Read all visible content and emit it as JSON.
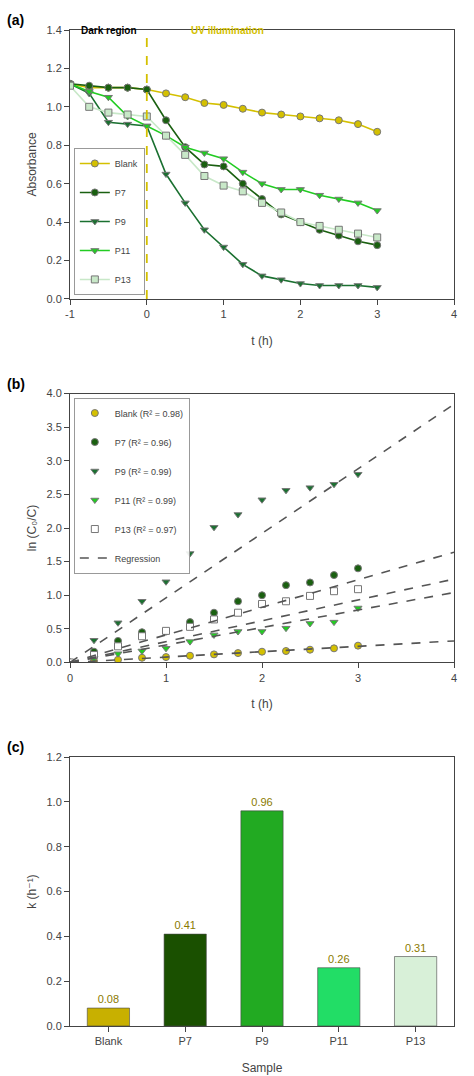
{
  "chart_data": [
    {
      "type": "line",
      "panel_label": "(a)",
      "x_label": "t (h)",
      "y_label": "Absorbance",
      "xlim": [
        -1,
        4
      ],
      "xticks": [
        -1,
        0,
        1,
        2,
        3,
        4
      ],
      "ylim": [
        0.0,
        1.4
      ],
      "yticks": [
        {
          "value": 0.0,
          "label": "0.0"
        },
        0.2,
        0.4,
        0.6,
        0.8,
        {
          "value": 1.0,
          "label": "1.0"
        },
        1.2,
        1.4
      ],
      "grid": false,
      "legend": "lower left",
      "x": [
        -1,
        -0.75,
        -0.5,
        -0.25,
        0,
        0.25,
        0.5,
        0.75,
        1.0,
        1.25,
        1.5,
        1.75,
        2.0,
        2.25,
        2.5,
        2.75,
        3.0
      ],
      "series": [
        {
          "name": "Blank",
          "color": "#d4c000",
          "marker": "circle",
          "line_style": "solid",
          "values": [
            1.12,
            1.1,
            1.1,
            1.1,
            1.09,
            1.07,
            1.05,
            1.02,
            1.01,
            0.99,
            0.97,
            0.96,
            0.95,
            0.94,
            0.93,
            0.91,
            0.87
          ]
        },
        {
          "name": "P7",
          "color": "#1a6010",
          "marker": "circle",
          "line_style": "solid",
          "values": [
            1.12,
            1.11,
            1.1,
            1.1,
            1.09,
            0.93,
            0.79,
            0.7,
            0.69,
            0.6,
            0.52,
            0.44,
            0.4,
            0.36,
            0.33,
            0.3,
            0.28
          ]
        },
        {
          "name": "P9",
          "color": "#1a7030",
          "marker": "triangle-down",
          "line_style": "solid",
          "values": [
            1.12,
            1.07,
            0.92,
            0.91,
            0.9,
            0.65,
            0.5,
            0.36,
            0.27,
            0.18,
            0.12,
            0.1,
            0.08,
            0.07,
            0.07,
            0.07,
            0.06
          ]
        },
        {
          "name": "P11",
          "color": "#22cc22",
          "marker": "triangle-down",
          "line_style": "solid",
          "values": [
            1.12,
            1.08,
            1.05,
            0.95,
            0.9,
            0.85,
            0.79,
            0.76,
            0.73,
            0.66,
            0.6,
            0.57,
            0.57,
            0.54,
            0.52,
            0.5,
            0.46
          ]
        },
        {
          "name": "P13",
          "color": "#c8e8c8",
          "marker": "square",
          "line_style": "solid",
          "values": [
            1.11,
            1.0,
            0.97,
            0.96,
            0.95,
            0.85,
            0.75,
            0.64,
            0.59,
            0.56,
            0.5,
            0.45,
            0.4,
            0.38,
            0.36,
            0.34,
            0.32
          ]
        }
      ],
      "reference_lines": [
        {
          "x": 0,
          "color": "#d4c000",
          "line_style": "dashed"
        }
      ],
      "annotations": [
        {
          "text": "Dark region",
          "x": -0.88,
          "y": 1.36,
          "color": "#000000"
        },
        {
          "text": "UV illumination",
          "x": 0.55,
          "y": 1.36,
          "color": "#d4c000"
        }
      ]
    },
    {
      "type": "scatter",
      "panel_label": "(b)",
      "x_label": "t (h)",
      "y_label": "ln (C₀/C)",
      "xlim": [
        0,
        4
      ],
      "xticks": [
        0,
        1,
        2,
        3,
        4
      ],
      "ylim": [
        0.0,
        4.0
      ],
      "yticks": [
        {
          "value": 0.0,
          "label": "0.0"
        },
        0.5,
        {
          "value": 1.0,
          "label": "1.0"
        },
        1.5,
        {
          "value": 2.0,
          "label": "2.0"
        },
        2.5,
        {
          "value": 3.0,
          "label": "3.0"
        },
        3.5,
        {
          "value": 4.0,
          "label": "4.0"
        }
      ],
      "grid": false,
      "legend": "upper left",
      "series": [
        {
          "name": "Blank (R² = 0.98)",
          "type": "scatter",
          "color": "#d4c000",
          "marker": "circle",
          "x": [
            0,
            0.25,
            0.5,
            0.75,
            1.0,
            1.25,
            1.5,
            1.75,
            2.0,
            2.25,
            2.5,
            2.75,
            3.0
          ],
          "values": [
            0.0,
            0.02,
            0.04,
            0.07,
            0.08,
            0.1,
            0.12,
            0.14,
            0.16,
            0.17,
            0.19,
            0.21,
            0.25
          ]
        },
        {
          "name": "P7 (R² = 0.96)",
          "type": "scatter",
          "color": "#1a6010",
          "marker": "circle",
          "x": [
            0,
            0.25,
            0.5,
            0.75,
            1.0,
            1.25,
            1.5,
            1.75,
            2.0,
            2.25,
            2.5,
            2.75,
            3.0
          ],
          "values": [
            0.0,
            0.16,
            0.32,
            0.45,
            0.46,
            0.6,
            0.74,
            0.91,
            1.0,
            1.15,
            1.19,
            1.3,
            1.4
          ]
        },
        {
          "name": "P9 (R² = 0.99)",
          "type": "scatter",
          "color": "#1a7030",
          "marker": "triangle-down",
          "x": [
            0,
            0.25,
            0.5,
            0.75,
            1.0,
            1.25,
            1.5,
            1.75,
            2.0,
            2.25,
            2.5,
            2.75,
            3.0
          ],
          "values": [
            0.0,
            0.33,
            0.59,
            0.91,
            1.2,
            1.62,
            2.01,
            2.2,
            2.42,
            2.56,
            2.6,
            2.65,
            2.8
          ]
        },
        {
          "name": "P11 (R² = 0.99)",
          "type": "scatter",
          "color": "#22cc22",
          "marker": "triangle-down",
          "x": [
            0,
            0.25,
            0.5,
            0.75,
            1.0,
            1.25,
            1.5,
            1.75,
            2.0,
            2.25,
            2.5,
            2.75,
            3.0
          ],
          "values": [
            0.0,
            0.06,
            0.13,
            0.17,
            0.21,
            0.31,
            0.41,
            0.46,
            0.46,
            0.51,
            0.58,
            0.6,
            0.81
          ]
        },
        {
          "name": "P13 (R² = 0.97)",
          "type": "scatter",
          "color": "#ffffff",
          "marker": "square",
          "x": [
            0,
            0.25,
            0.5,
            0.75,
            1.0,
            1.25,
            1.5,
            1.75,
            2.0,
            2.25,
            2.5,
            2.75,
            3.0
          ],
          "values": [
            0.0,
            0.11,
            0.24,
            0.39,
            0.47,
            0.53,
            0.64,
            0.74,
            0.87,
            0.91,
            0.99,
            1.06,
            1.09
          ]
        },
        {
          "name": "Regression",
          "type": "line",
          "color": "#555555",
          "line_style": "dashed",
          "x": [
            0,
            4
          ],
          "values": [
            0,
            0.32
          ]
        },
        {
          "name": "Regression",
          "type": "line",
          "color": "#555555",
          "line_style": "dashed",
          "x": [
            0,
            4
          ],
          "values": [
            0,
            1.64
          ]
        },
        {
          "name": "Regression",
          "type": "line",
          "color": "#555555",
          "line_style": "dashed",
          "x": [
            0,
            4
          ],
          "values": [
            0,
            3.84
          ]
        },
        {
          "name": "Regression",
          "type": "line",
          "color": "#555555",
          "line_style": "dashed",
          "x": [
            0,
            4
          ],
          "values": [
            0,
            1.04
          ]
        },
        {
          "name": "Regression",
          "type": "line",
          "color": "#555555",
          "line_style": "dashed",
          "x": [
            0,
            4
          ],
          "values": [
            0,
            1.24
          ]
        }
      ]
    },
    {
      "type": "bar",
      "panel_label": "(c)",
      "x_label": "Sample",
      "y_label": "k (h⁻¹)",
      "categories": [
        "Blank",
        "P7",
        "P9",
        "P11",
        "P13"
      ],
      "values": [
        0.08,
        0.41,
        0.96,
        0.26,
        0.31
      ],
      "colors": [
        "#c8b000",
        "#1a5000",
        "#22aa22",
        "#22dd66",
        "#d8f0d8"
      ],
      "ylim": [
        0.0,
        1.2
      ],
      "yticks": [
        {
          "value": 0.0,
          "label": "0.0"
        },
        0.2,
        0.4,
        0.6,
        0.8,
        {
          "value": 1.0,
          "label": "1.0"
        },
        1.2
      ],
      "grid": false,
      "data_labels": true
    }
  ]
}
